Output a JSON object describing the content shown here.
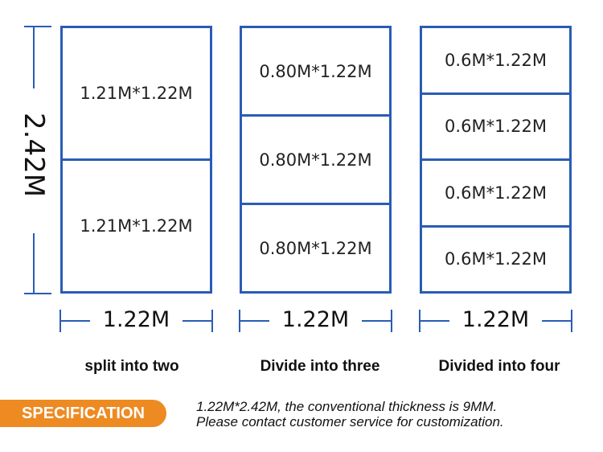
{
  "height_label": "2.42M",
  "width_label": "1.22M",
  "columns": [
    {
      "cells": [
        "1.21M*1.22M",
        "1.21M*1.22M"
      ],
      "caption": "split into two"
    },
    {
      "cells": [
        "0.80M*1.22M",
        "0.80M*1.22M",
        "0.80M*1.22M"
      ],
      "caption": "Divide into three"
    },
    {
      "cells": [
        "0.6M*1.22M",
        "0.6M*1.22M",
        "0.6M*1.22M",
        "0.6M*1.22M"
      ],
      "caption": "Divided into four"
    }
  ],
  "spec": {
    "badge": "SPECIFICATION",
    "line1": "1.22M*2.42M, the conventional thickness is 9MM.",
    "line2": "Please contact customer service for customization."
  },
  "colors": {
    "line": "#2a5cb4",
    "badge": "#ee8a22"
  }
}
